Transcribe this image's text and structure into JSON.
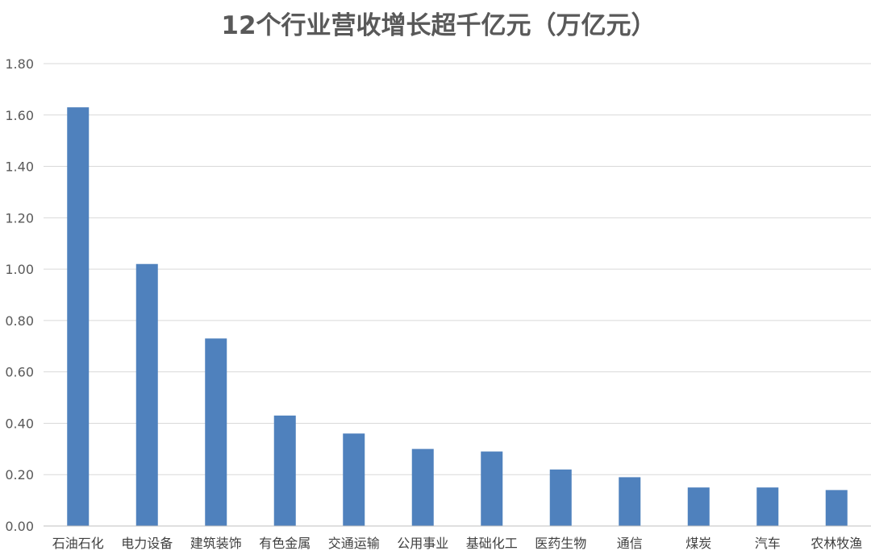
{
  "chart_data": {
    "type": "bar",
    "title": "12个行业营收增长超千亿元（万亿元）",
    "xlabel": "",
    "ylabel": "",
    "categories": [
      "石油石化",
      "电力设备",
      "建筑装饰",
      "有色金属",
      "交通运输",
      "公用事业",
      "基础化工",
      "医药生物",
      "通信",
      "煤炭",
      "汽车",
      "农林牧渔"
    ],
    "values": [
      1.63,
      1.02,
      0.73,
      0.43,
      0.36,
      0.3,
      0.29,
      0.22,
      0.19,
      0.15,
      0.15,
      0.14
    ],
    "ylim": [
      0,
      1.8
    ],
    "yticks": [
      "0.00",
      "0.20",
      "0.40",
      "0.60",
      "0.80",
      "1.00",
      "1.20",
      "1.40",
      "1.60",
      "1.80"
    ],
    "grid": true,
    "legend": "none",
    "colors": {
      "bar": "#4f81bd",
      "grid": "#d9d9d9",
      "axis": "#bfbfbf",
      "title": "#595959",
      "label": "#404040"
    }
  }
}
